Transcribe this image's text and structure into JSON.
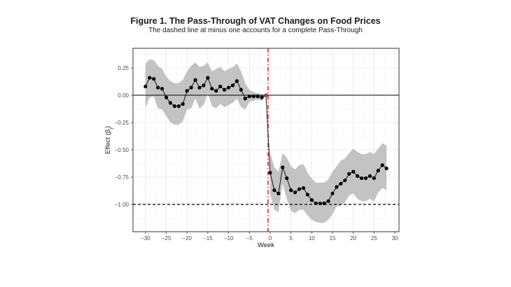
{
  "chart_data": {
    "type": "line",
    "title": "Figure 1. The Pass-Through of VAT Changes on Food Prices",
    "subtitle": "The dashed line at minus one accounts for a complete Pass-Through",
    "xlabel": "Week",
    "ylabel": "Effect (β_j)",
    "xlim": [
      -33,
      31
    ],
    "ylim": [
      -1.25,
      0.43
    ],
    "x_ticks": [
      -30,
      -25,
      -20,
      -15,
      -10,
      -5,
      0,
      5,
      10,
      15,
      20,
      25,
      30
    ],
    "y_ticks": [
      0.25,
      0.0,
      -0.25,
      -0.5,
      -0.75,
      -1.0
    ],
    "x_tick_labels": [
      "−30",
      "−25",
      "−20",
      "−15",
      "−10",
      "−5",
      "0",
      "5",
      "10",
      "15",
      "20",
      "25",
      "30"
    ],
    "y_tick_labels": [
      "0.25",
      "0.00",
      "−0.25",
      "−0.50",
      "−0.75",
      "−1.00"
    ],
    "grid": true,
    "reference_lines": [
      {
        "axis": "y",
        "value": 0,
        "style": "solid",
        "color": "#000000"
      },
      {
        "axis": "y",
        "value": -1,
        "style": "dashed",
        "color": "#000000"
      },
      {
        "axis": "x",
        "value": -0.5,
        "style": "dashdot",
        "color": "#d62728"
      }
    ],
    "series": [
      {
        "x": [
          -30,
          -29,
          -28,
          -27,
          -26,
          -25,
          -24,
          -23,
          -22,
          -21,
          -20,
          -19,
          -18,
          -17,
          -16,
          -15,
          -14,
          -13,
          -12,
          -11,
          -10,
          -9,
          -8,
          -7,
          -6,
          -5,
          -4,
          -3,
          -2,
          -1,
          0,
          1,
          2,
          3,
          4,
          5,
          6,
          7,
          8,
          9,
          10,
          11,
          12,
          13,
          14,
          15,
          16,
          17,
          18,
          19,
          20,
          21,
          22,
          23,
          24,
          25,
          26,
          27,
          28
        ],
        "y": [
          0.08,
          0.16,
          0.15,
          0.07,
          0.06,
          -0.02,
          -0.07,
          -0.1,
          -0.1,
          -0.08,
          0.04,
          0.07,
          0.14,
          0.07,
          0.09,
          0.16,
          0.06,
          0.04,
          0.08,
          0.05,
          0.07,
          0.09,
          0.13,
          0.05,
          -0.03,
          -0.01,
          -0.01,
          -0.01,
          -0.02,
          0.0,
          -0.71,
          -0.87,
          -0.9,
          -0.66,
          -0.76,
          -0.87,
          -0.89,
          -0.86,
          -0.85,
          -0.91,
          -0.96,
          -0.99,
          -0.99,
          -0.99,
          -0.97,
          -0.9,
          -0.84,
          -0.81,
          -0.78,
          -0.72,
          -0.7,
          -0.74,
          -0.76,
          -0.76,
          -0.74,
          -0.76,
          -0.69,
          -0.64,
          -0.67
        ],
        "ci_upper": [
          0.29,
          0.33,
          0.32,
          0.27,
          0.24,
          0.17,
          0.13,
          0.11,
          0.11,
          0.14,
          0.22,
          0.27,
          0.3,
          0.26,
          0.27,
          0.3,
          0.22,
          0.24,
          0.26,
          0.22,
          0.24,
          0.26,
          0.29,
          0.22,
          0.11,
          0.05,
          0.03,
          0.02,
          0.01,
          0.0,
          -0.52,
          -0.66,
          -0.7,
          -0.53,
          -0.57,
          -0.65,
          -0.68,
          -0.64,
          -0.63,
          -0.71,
          -0.76,
          -0.8,
          -0.8,
          -0.8,
          -0.77,
          -0.7,
          -0.65,
          -0.6,
          -0.58,
          -0.53,
          -0.49,
          -0.52,
          -0.54,
          -0.54,
          -0.52,
          -0.54,
          -0.49,
          -0.44,
          -0.46
        ],
        "ci_lower": [
          -0.12,
          -0.02,
          -0.01,
          -0.12,
          -0.13,
          -0.19,
          -0.25,
          -0.27,
          -0.27,
          -0.24,
          -0.13,
          -0.12,
          -0.03,
          -0.12,
          -0.09,
          0.02,
          -0.1,
          -0.12,
          -0.08,
          -0.11,
          -0.09,
          -0.07,
          -0.03,
          -0.11,
          -0.13,
          -0.06,
          -0.05,
          -0.04,
          -0.05,
          0.0,
          -0.9,
          -1.05,
          -1.07,
          -0.81,
          -0.95,
          -1.06,
          -1.08,
          -1.05,
          -1.05,
          -1.1,
          -1.14,
          -1.16,
          -1.17,
          -1.17,
          -1.14,
          -1.09,
          -1.02,
          -1.01,
          -0.98,
          -0.92,
          -0.9,
          -0.95,
          -0.97,
          -0.97,
          -0.95,
          -0.97,
          -0.89,
          -0.85,
          -0.87
        ]
      }
    ]
  }
}
